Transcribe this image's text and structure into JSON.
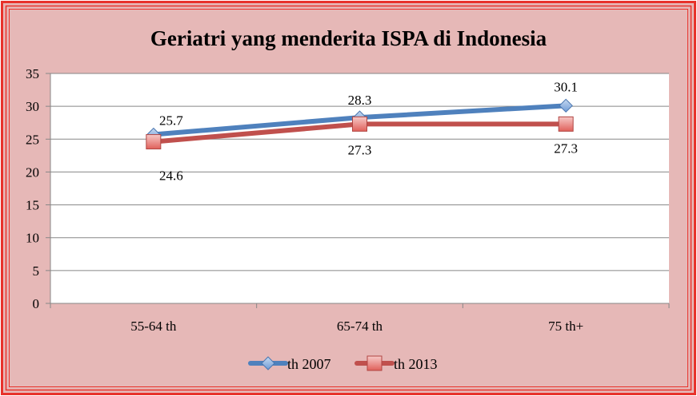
{
  "chart_data": {
    "type": "line",
    "title": "Geriatri yang menderita ISPA di Indonesia",
    "categories": [
      "55-64 th",
      "65-74 th",
      "75 th+"
    ],
    "series": [
      {
        "name": "th 2007",
        "values": [
          25.7,
          28.3,
          30.1
        ],
        "labels": [
          "25.7",
          "28.3",
          "30.1"
        ],
        "color": "#4f81bd",
        "marker": "diamond"
      },
      {
        "name": "th 2013",
        "values": [
          24.6,
          27.3,
          27.3
        ],
        "labels": [
          "24.6",
          "27.3",
          "27.3"
        ],
        "color": "#c0504d",
        "marker": "square"
      }
    ],
    "ylim": [
      0,
      35
    ],
    "yticks": [
      "0",
      "5",
      "10",
      "15",
      "20",
      "25",
      "30",
      "35"
    ],
    "grid": true,
    "legend": "bottom",
    "colors": {
      "background": "#e6b8b7",
      "border": "#e8322b",
      "plot_area": "#ffffff",
      "gridline": "#878787"
    }
  }
}
